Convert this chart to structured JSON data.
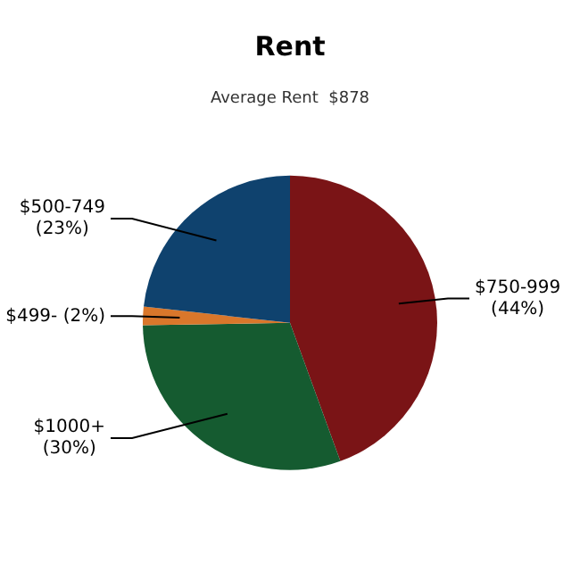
{
  "chart_data": {
    "type": "pie",
    "title": "Rent",
    "subtitle": "Average Rent  $878",
    "categories": [
      "$750-999",
      "$1000+",
      "$499-",
      "$500-749"
    ],
    "values": [
      44,
      30,
      2,
      23
    ],
    "value_labels": [
      "(44%)",
      "(30%)",
      "(2%)",
      "(23%)"
    ],
    "colors": [
      "#7a1416",
      "#155b30",
      "#d9772b",
      "#0f426e"
    ],
    "legend": false
  }
}
